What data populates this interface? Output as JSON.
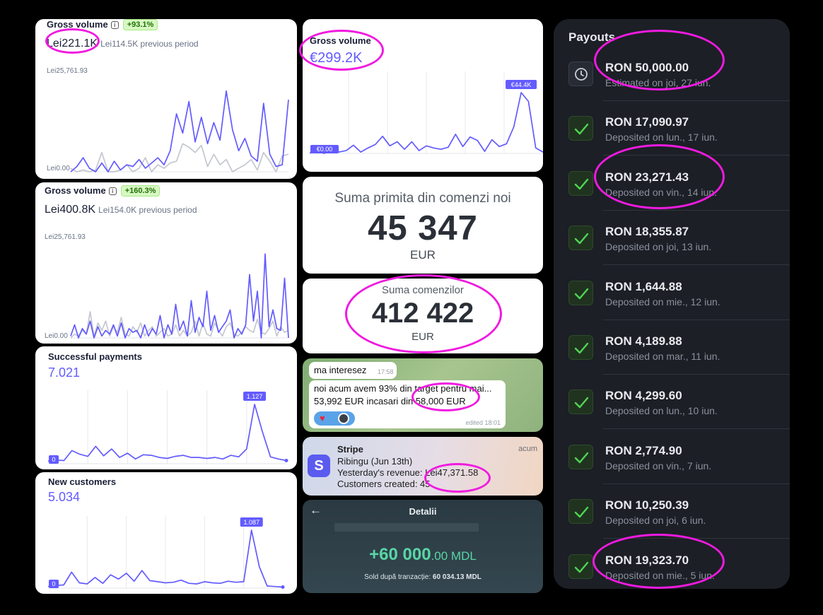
{
  "colors": {
    "accent": "#635bff",
    "compare": "#c4c7cf",
    "highlight": "#f01ae0",
    "success": "#3cc34a"
  },
  "gross1": {
    "title": "Gross volume",
    "badge": "+93.1%",
    "value": "Lei221.1K",
    "previous": "Lei114.5K previous period",
    "y_max_label": "Lei25,761.93",
    "y_min_label": "Lei0.00",
    "chart_data": {
      "type": "line",
      "title": "Gross volume",
      "ylim": [
        0,
        25761.93
      ],
      "series": [
        {
          "name": "current",
          "values": [
            0,
            1500,
            4000,
            1000,
            0,
            2500,
            0,
            3000,
            500,
            2000,
            1500,
            3500,
            1000,
            2500,
            4000,
            2000,
            6000,
            16500,
            11000,
            20000,
            8500,
            15500,
            8000,
            14000,
            9000,
            23000,
            12000,
            6000,
            9500,
            4500,
            3000,
            19500,
            5000,
            1500,
            2000,
            20500
          ]
        },
        {
          "name": "previous",
          "values": [
            1000,
            0,
            500,
            0,
            500,
            5500,
            0,
            0,
            500,
            2000,
            0,
            1000,
            4000,
            0,
            2000,
            1000,
            2500,
            3000,
            8000,
            7000,
            5500,
            7500,
            1500,
            5000,
            2000,
            3500,
            0,
            1000,
            2000,
            3500,
            500,
            5500,
            3000,
            0,
            4500,
            5000
          ]
        }
      ]
    }
  },
  "gross2": {
    "title": "Gross volume",
    "badge": "+160.3%",
    "value": "Lei400.8K",
    "previous": "Lei154.0K previous period",
    "y_max_label": "Lei25,761.93",
    "y_min_label": "Lei0.00",
    "chart_data": {
      "type": "line",
      "title": "Gross volume",
      "ylim": [
        0,
        25761.93
      ],
      "series": [
        {
          "name": "current",
          "values": [
            500,
            3500,
            0,
            2500,
            1000,
            4500,
            0,
            3000,
            500,
            2000,
            1000,
            3500,
            500,
            4000,
            0,
            2500,
            1500,
            2000,
            0,
            3500,
            500,
            2500,
            1000,
            6000,
            0,
            3500,
            1000,
            9000,
            2000,
            4500,
            500,
            10000,
            1500,
            5500,
            3000,
            12500,
            2000,
            6000,
            1500,
            3000,
            4500,
            7500,
            0,
            2500,
            1000,
            3500,
            17000,
            4500,
            12500,
            0,
            22500,
            3000,
            7500,
            2500,
            2000,
            16000,
            0
          ]
        },
        {
          "name": "previous",
          "values": [
            0,
            1000,
            500,
            2000,
            1000,
            7000,
            500,
            4000,
            2000,
            4500,
            500,
            3000,
            1500,
            5500,
            1000,
            500,
            3000,
            1500,
            4000,
            500,
            2000,
            3000,
            500,
            1500,
            2500,
            500,
            1000,
            3500,
            500,
            2000,
            500,
            1500,
            4500,
            500,
            4000,
            1000,
            500,
            4000,
            2000,
            500,
            3000,
            4000,
            1000,
            500,
            1500,
            3000,
            2000,
            1500,
            5000,
            1500,
            1000,
            2500,
            4500,
            500,
            3000,
            1500,
            2000
          ]
        }
      ]
    }
  },
  "payments": {
    "title": "Successful payments",
    "value": "7.021",
    "min_label": "0",
    "peak_label": "1.127",
    "chart_data": {
      "type": "line",
      "title": "Successful payments",
      "ylim": [
        0,
        1127
      ],
      "series": [
        {
          "name": "payments",
          "values": [
            50,
            70,
            60,
            250,
            180,
            140,
            330,
            150,
            280,
            120,
            200,
            90,
            170,
            160,
            120,
            100,
            140,
            160,
            120,
            120,
            100,
            120,
            90,
            160,
            130,
            280,
            1127,
            600,
            130,
            90,
            60
          ]
        }
      ]
    }
  },
  "customers": {
    "title": "New customers",
    "value": "5.034",
    "min_label": "0",
    "peak_label": "1.087",
    "chart_data": {
      "type": "line",
      "title": "New customers",
      "ylim": [
        0,
        1087
      ],
      "series": [
        {
          "name": "customers",
          "values": [
            30,
            50,
            60,
            300,
            100,
            80,
            200,
            90,
            250,
            170,
            280,
            130,
            330,
            140,
            120,
            100,
            110,
            150,
            90,
            80,
            120,
            100,
            90,
            130,
            110,
            120,
            1087,
            400,
            40,
            30,
            20
          ]
        }
      ]
    }
  },
  "gross_eur": {
    "title": "Gross volume",
    "value": "€299.2K",
    "start_label": "€0.00",
    "peak_label": "€44.4K",
    "chart_data": {
      "type": "line",
      "title": "Gross volume",
      "ylim": [
        0,
        44400
      ],
      "series": [
        {
          "name": "current",
          "values": [
            200,
            1500,
            0,
            3000,
            1000,
            2000,
            6000,
            1000,
            4000,
            6500,
            12500,
            5500,
            8500,
            3000,
            8500,
            2000,
            5500,
            4000,
            3000,
            4500,
            14000,
            5000,
            12000,
            9500,
            1500,
            10000,
            5000,
            7000,
            19500,
            44400,
            38000,
            4000,
            1000
          ]
        }
      ]
    }
  },
  "sum_new": {
    "title": "Suma primita din comenzi noi",
    "value": "45 347",
    "currency": "EUR"
  },
  "sum_orders": {
    "title": "Suma comenzilor",
    "value": "412 422",
    "currency": "EUR"
  },
  "chat": {
    "msg1": "ma interesez",
    "msg1_time": "17:58",
    "msg2_line1": "noi acum avem 93% din target pentru mai...",
    "msg2_line2": "53,992 EUR incasari din 58,000 EUR",
    "msg2_meta": "edited 18:01"
  },
  "stripe": {
    "app": "Stripe",
    "time": "acum",
    "line1": "Ribingu (Jun 13th)",
    "line2": "Yesterday's revenue: Lei47,371.58",
    "line3": "Customers created: 45",
    "logo": "S"
  },
  "bank": {
    "title": "Detalii",
    "amount": "+60 000",
    "decimals": ".00 MDL",
    "balance_label": "Sold după tranzacție:",
    "balance_value": "60 034.13 MDL"
  },
  "payouts": {
    "title": "Payouts",
    "items": [
      {
        "amount": "RON 50,000.00",
        "status": "Estimated on joi, 27 iun.",
        "icon": "clock-icon"
      },
      {
        "amount": "RON 17,090.97",
        "status": "Deposited on lun., 17 iun.",
        "icon": "check-icon"
      },
      {
        "amount": "RON 23,271.43",
        "status": "Deposited on vin., 14 iun.",
        "icon": "check-icon"
      },
      {
        "amount": "RON 18,355.87",
        "status": "Deposited on joi, 13 iun.",
        "icon": "check-icon"
      },
      {
        "amount": "RON 1,644.88",
        "status": "Deposited on mie., 12 iun.",
        "icon": "check-icon"
      },
      {
        "amount": "RON 4,189.88",
        "status": "Deposited on mar., 11 iun.",
        "icon": "check-icon"
      },
      {
        "amount": "RON 4,299.60",
        "status": "Deposited on lun., 10 iun.",
        "icon": "check-icon"
      },
      {
        "amount": "RON 2,774.90",
        "status": "Deposited on vin., 7 iun.",
        "icon": "check-icon"
      },
      {
        "amount": "RON 10,250.39",
        "status": "Deposited on joi, 6 iun.",
        "icon": "check-icon"
      },
      {
        "amount": "RON 19,323.70",
        "status": "Deposited on mie., 5 iun.",
        "icon": "check-icon"
      }
    ]
  }
}
